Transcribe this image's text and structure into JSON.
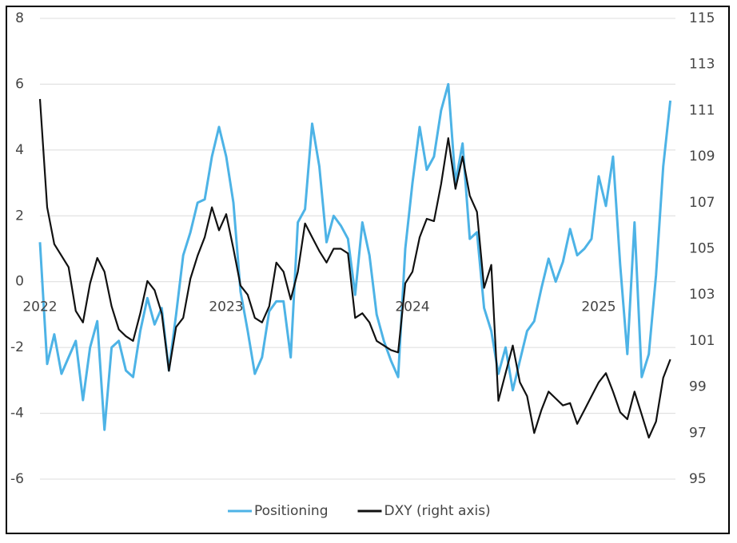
{
  "chart_data": {
    "type": "line",
    "categories": [
      "2022",
      null,
      null,
      null,
      null,
      null,
      null,
      null,
      null,
      null,
      null,
      null,
      null,
      null,
      null,
      null,
      null,
      null,
      null,
      null,
      null,
      null,
      null,
      null,
      null,
      null,
      "2023",
      null,
      null,
      null,
      null,
      null,
      null,
      null,
      null,
      null,
      null,
      null,
      null,
      null,
      null,
      null,
      null,
      null,
      null,
      null,
      null,
      null,
      null,
      null,
      null,
      null,
      "2024",
      null,
      null,
      null,
      null,
      null,
      null,
      null,
      null,
      null,
      null,
      null,
      null,
      null,
      null,
      null,
      null,
      null,
      null,
      null,
      null,
      null,
      null,
      null,
      null,
      null,
      "2025",
      null,
      null,
      null,
      null,
      null,
      null,
      null,
      null,
      null,
      null
    ],
    "series": [
      {
        "name": "Positioning",
        "color": "#4db3e6",
        "axis": "y",
        "values": [
          1.2,
          -2.5,
          -1.6,
          -2.8,
          -2.3,
          -1.8,
          -3.6,
          -2.0,
          -1.2,
          -4.5,
          -2.0,
          -1.8,
          -2.7,
          -2.9,
          -1.5,
          -0.5,
          -1.3,
          -0.8,
          -2.7,
          -1.0,
          0.8,
          1.5,
          2.4,
          2.5,
          3.8,
          4.7,
          3.8,
          2.4,
          -0.3,
          -1.5,
          -2.8,
          -2.3,
          -0.9,
          -0.6,
          -0.6,
          -2.3,
          1.8,
          2.2,
          4.8,
          3.5,
          1.2,
          2.0,
          1.7,
          1.3,
          -0.4,
          1.8,
          0.8,
          -1.0,
          -1.8,
          -2.4,
          -2.9,
          1.0,
          3.0,
          4.7,
          3.4,
          3.8,
          5.2,
          6.0,
          3.0,
          4.2,
          1.3,
          1.5,
          -0.8,
          -1.5,
          -2.8,
          -2.0,
          -3.3,
          -2.4,
          -1.5,
          -1.2,
          -0.2,
          0.7,
          0.0,
          0.6,
          1.6,
          0.8,
          1.0,
          1.3,
          3.2,
          2.3,
          3.8,
          0.5,
          -2.2,
          1.8,
          -2.9,
          -2.2,
          0.2,
          3.5,
          5.5
        ]
      },
      {
        "name": "DXY (right axis)",
        "color": "#111111",
        "axis": "y2",
        "values": [
          111.5,
          106.8,
          105.2,
          104.7,
          104.2,
          102.3,
          101.8,
          103.5,
          104.6,
          104.0,
          102.5,
          101.5,
          101.2,
          101.0,
          102.2,
          103.6,
          103.2,
          102.2,
          99.7,
          101.6,
          102.0,
          103.7,
          104.7,
          105.5,
          106.8,
          105.8,
          106.5,
          105.0,
          103.4,
          103.0,
          102.0,
          101.8,
          102.5,
          104.4,
          104.0,
          102.8,
          104.0,
          106.1,
          105.5,
          104.9,
          104.4,
          105.0,
          105.0,
          104.8,
          102.0,
          102.2,
          101.8,
          101.0,
          100.8,
          100.6,
          100.5,
          103.5,
          104.0,
          105.5,
          106.3,
          106.2,
          107.8,
          109.8,
          107.6,
          109.0,
          107.3,
          106.6,
          103.3,
          104.3,
          98.4,
          99.6,
          100.8,
          99.2,
          98.6,
          97.0,
          98.0,
          98.8,
          98.5,
          98.2,
          98.3,
          97.4,
          98.0,
          98.6,
          99.2,
          99.6,
          98.8,
          97.9,
          97.6,
          98.8,
          97.8,
          96.8,
          97.5,
          99.4,
          100.2
        ]
      }
    ],
    "ylim": [
      -6,
      8
    ],
    "yticks": [
      -6,
      -4,
      -2,
      0,
      2,
      4,
      6,
      8
    ],
    "y2lim": [
      95,
      115
    ],
    "y2ticks": [
      95,
      97,
      99,
      101,
      103,
      105,
      107,
      109,
      111,
      113,
      115
    ],
    "grid": true,
    "legend": "bottom"
  }
}
